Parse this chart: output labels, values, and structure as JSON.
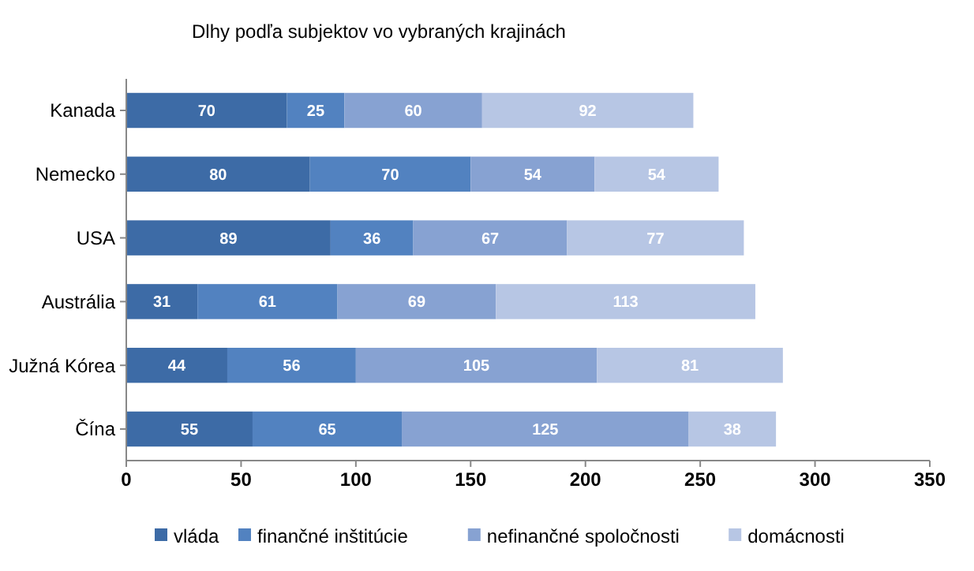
{
  "chart_data": {
    "type": "bar",
    "orientation": "horizontal",
    "stacked": true,
    "title": "Dlhy podľa subjektov vo vybraných krajinách",
    "categories": [
      "Kanada",
      "Nemecko",
      "USA",
      "Austrália",
      "Južná Kórea",
      "Čína"
    ],
    "series": [
      {
        "name": "vláda",
        "color": "#3d6ba6",
        "values": [
          70,
          80,
          89,
          31,
          44,
          55
        ]
      },
      {
        "name": "finančné inštitúcie",
        "color": "#5282c0",
        "values": [
          25,
          70,
          36,
          61,
          56,
          65
        ]
      },
      {
        "name": "nefinančné spoločnosti",
        "color": "#87a2d2",
        "values": [
          60,
          54,
          67,
          69,
          105,
          125
        ]
      },
      {
        "name": "domácnosti",
        "color": "#b7c6e4",
        "values": [
          92,
          54,
          77,
          113,
          81,
          38
        ]
      }
    ],
    "xlim": [
      0,
      350
    ],
    "xticks": [
      0,
      50,
      100,
      150,
      200,
      250,
      300,
      350
    ],
    "data_labels": true,
    "legend": "bottom",
    "grid": false
  }
}
